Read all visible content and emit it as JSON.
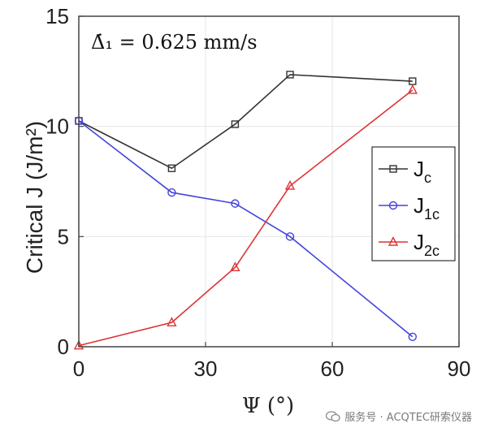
{
  "colors": {
    "jc": "#333333",
    "j1c": "#4444dd",
    "j2c": "#dd3333",
    "grid": "#e6e6e6",
    "axis": "#444444"
  },
  "chart_data": {
    "type": "line",
    "annotation": "Δ̇₁ = 0.625 mm/s",
    "xlabel": "Ψ (°)",
    "ylabel": "Critical J (J/m²)",
    "xlim": [
      0,
      90
    ],
    "ylim": [
      0,
      15
    ],
    "xticks": [
      0,
      30,
      60,
      90
    ],
    "yticks": [
      0,
      5,
      10,
      15
    ],
    "grid": true,
    "legend_position": "right-middle",
    "x": [
      0,
      22,
      37,
      50,
      79
    ],
    "series": [
      {
        "name": "J",
        "sub": "c",
        "marker": "square",
        "color_key": "jc",
        "values": [
          10.25,
          8.1,
          10.1,
          12.35,
          12.05
        ]
      },
      {
        "name": "J",
        "sub": "1c",
        "marker": "circle",
        "color_key": "j1c",
        "values": [
          10.25,
          7.0,
          6.5,
          5.0,
          0.45
        ]
      },
      {
        "name": "J",
        "sub": "2c",
        "marker": "triangle",
        "color_key": "j2c",
        "values": [
          0.05,
          1.1,
          3.6,
          7.3,
          11.65
        ]
      }
    ]
  },
  "watermark": "服务号 · ACQTEC研索仪器"
}
